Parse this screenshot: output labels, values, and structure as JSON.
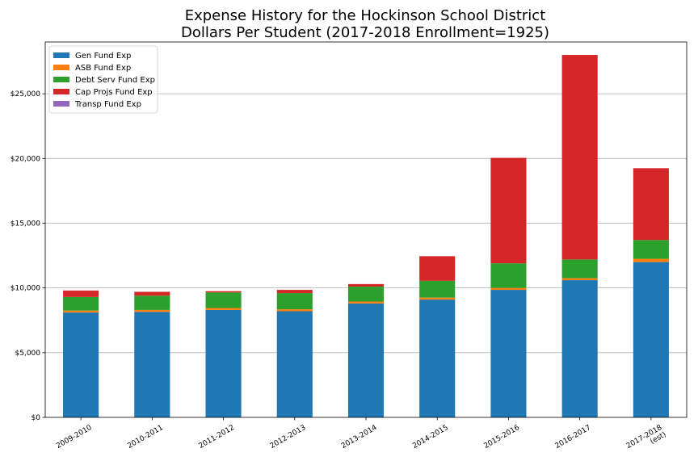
{
  "chart_data": {
    "type": "bar",
    "stacked": true,
    "title": "Expense History for the Hockinson School District",
    "subtitle": "Dollars Per Student (2017-2018 Enrollment=1925)",
    "xlabel": "",
    "ylabel": "",
    "categories": [
      "2009-2010",
      "2010-2011",
      "2011-2012",
      "2012-2013",
      "2013-2014",
      "2014-2015",
      "2015-2016",
      "2016-2017",
      "2017-2018\n(est)"
    ],
    "ylim": [
      0,
      29000
    ],
    "yticks": [
      0,
      5000,
      10000,
      15000,
      20000,
      25000
    ],
    "ytick_labels": [
      "$0",
      "$5,000",
      "$10,000",
      "$15,000",
      "$20,000",
      "$25,000"
    ],
    "grid": "horizontal",
    "legend_position": "top-left",
    "series": [
      {
        "name": "Gen Fund Exp",
        "color": "#1f77b4",
        "values": [
          8100,
          8150,
          8300,
          8200,
          8800,
          9100,
          9850,
          10600,
          12000
        ]
      },
      {
        "name": "ASB Fund Exp",
        "color": "#ff7f0e",
        "values": [
          150,
          150,
          150,
          150,
          150,
          150,
          150,
          150,
          250
        ]
      },
      {
        "name": "Debt Serv Fund Exp",
        "color": "#2ca02c",
        "values": [
          1050,
          1100,
          1200,
          1250,
          1150,
          1300,
          1900,
          1450,
          1450
        ]
      },
      {
        "name": "Cap Projs Fund Exp",
        "color": "#d62728",
        "values": [
          500,
          300,
          100,
          250,
          200,
          1900,
          8150,
          15800,
          5550
        ]
      },
      {
        "name": "Transp Fund Exp",
        "color": "#9467bd",
        "values": [
          0,
          0,
          0,
          0,
          0,
          0,
          0,
          0,
          0
        ]
      }
    ]
  }
}
